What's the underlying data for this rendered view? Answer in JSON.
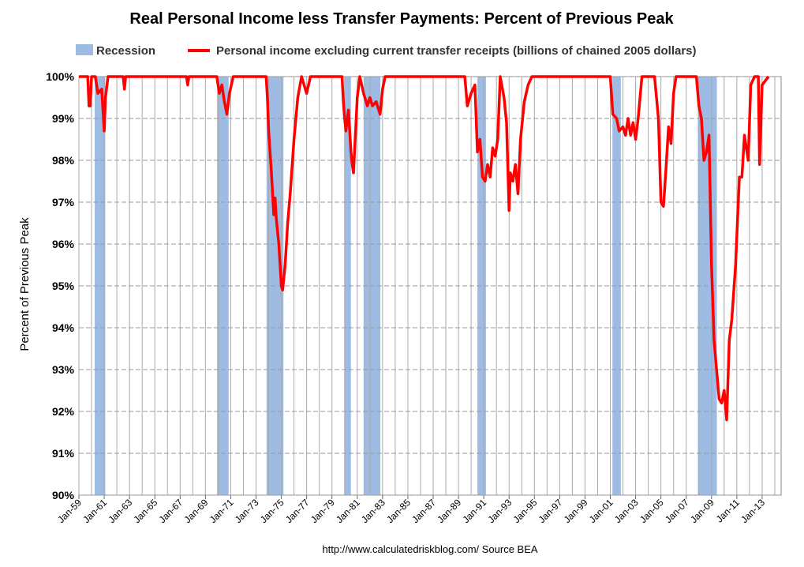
{
  "chart_data": {
    "type": "line",
    "title": "Real Personal Income less Transfer Payments: Percent of Previous Peak",
    "ylabel": "Percent of Previous Peak",
    "note": "http://www.calculatedriskblog.com/     Source BEA",
    "xlim": [
      1959,
      2014.5
    ],
    "ylim": [
      90,
      100
    ],
    "yticks": [
      {
        "value": 90,
        "label": "90%"
      },
      {
        "value": 91,
        "label": "91%"
      },
      {
        "value": 92,
        "label": "92%"
      },
      {
        "value": 93,
        "label": "93%"
      },
      {
        "value": 94,
        "label": "94%"
      },
      {
        "value": 95,
        "label": "95%"
      },
      {
        "value": 96,
        "label": "96%"
      },
      {
        "value": 97,
        "label": "97%"
      },
      {
        "value": 98,
        "label": "98%"
      },
      {
        "value": 99,
        "label": "99%"
      },
      {
        "value": 100,
        "label": "100%"
      }
    ],
    "xticks": [
      {
        "value": 1959,
        "label": "Jan-59"
      },
      {
        "value": 1961,
        "label": "Jan-61"
      },
      {
        "value": 1963,
        "label": "Jan-63"
      },
      {
        "value": 1965,
        "label": "Jan-65"
      },
      {
        "value": 1967,
        "label": "Jan-67"
      },
      {
        "value": 1969,
        "label": "Jan-69"
      },
      {
        "value": 1971,
        "label": "Jan-71"
      },
      {
        "value": 1973,
        "label": "Jan-73"
      },
      {
        "value": 1975,
        "label": "Jan-75"
      },
      {
        "value": 1977,
        "label": "Jan-77"
      },
      {
        "value": 1979,
        "label": "Jan-79"
      },
      {
        "value": 1981,
        "label": "Jan-81"
      },
      {
        "value": 1983,
        "label": "Jan-83"
      },
      {
        "value": 1985,
        "label": "Jan-85"
      },
      {
        "value": 1987,
        "label": "Jan-87"
      },
      {
        "value": 1989,
        "label": "Jan-89"
      },
      {
        "value": 1991,
        "label": "Jan-91"
      },
      {
        "value": 1993,
        "label": "Jan-93"
      },
      {
        "value": 1995,
        "label": "Jan-95"
      },
      {
        "value": 1997,
        "label": "Jan-97"
      },
      {
        "value": 1999,
        "label": "Jan-99"
      },
      {
        "value": 2001,
        "label": "Jan-01"
      },
      {
        "value": 2003,
        "label": "Jan-03"
      },
      {
        "value": 2005,
        "label": "Jan-05"
      },
      {
        "value": 2007,
        "label": "Jan-07"
      },
      {
        "value": 2009,
        "label": "Jan-09"
      },
      {
        "value": 2011,
        "label": "Jan-11"
      },
      {
        "value": 2013,
        "label": "Jan-13"
      }
    ],
    "xminor": [
      1960,
      1962,
      1964,
      1966,
      1968,
      1970,
      1972,
      1974,
      1976,
      1978,
      1980,
      1982,
      1984,
      1986,
      1988,
      1990,
      1992,
      1994,
      1996,
      1998,
      2000,
      2002,
      2004,
      2006,
      2008,
      2010,
      2012,
      2014
    ],
    "grid": true,
    "recession": {
      "name": "Recession",
      "color": "#9dbbe3",
      "periods": [
        [
          1960.25,
          1961.08
        ],
        [
          1969.92,
          1970.83
        ],
        [
          1973.83,
          1975.17
        ],
        [
          1980.0,
          1980.5
        ],
        [
          1981.5,
          1982.83
        ],
        [
          1990.5,
          1991.17
        ],
        [
          2001.17,
          2001.83
        ],
        [
          2007.92,
          2009.42
        ]
      ]
    },
    "series": [
      {
        "name": "Personal income excluding current transfer receipts (billions of chained 2005 dollars)",
        "color": "#ff0000",
        "x": [
          1959.0,
          1959.7,
          1959.8,
          1959.9,
          1960.0,
          1960.3,
          1960.5,
          1960.8,
          1961.0,
          1961.1,
          1961.3,
          1962.5,
          1962.6,
          1962.7,
          1967.5,
          1967.6,
          1967.7,
          1969.9,
          1970.1,
          1970.3,
          1970.5,
          1970.7,
          1970.9,
          1971.2,
          1973.8,
          1973.9,
          1974.0,
          1974.2,
          1974.4,
          1974.5,
          1974.6,
          1974.8,
          1975.0,
          1975.1,
          1975.3,
          1975.5,
          1975.7,
          1976.0,
          1976.3,
          1976.6,
          1977.0,
          1977.3,
          1979.8,
          1979.9,
          1980.0,
          1980.1,
          1980.3,
          1980.5,
          1980.6,
          1980.7,
          1980.8,
          1981.0,
          1981.2,
          1981.5,
          1981.8,
          1982.0,
          1982.2,
          1982.5,
          1982.8,
          1983.0,
          1983.2,
          1989.5,
          1989.7,
          1990.0,
          1990.3,
          1990.5,
          1990.7,
          1990.9,
          1991.1,
          1991.3,
          1991.5,
          1991.7,
          1991.9,
          1992.1,
          1992.3,
          1992.6,
          1992.8,
          1993.0,
          1993.1,
          1993.3,
          1993.5,
          1993.7,
          1993.9,
          1994.2,
          1994.5,
          1994.8,
          2001.0,
          2001.2,
          2001.5,
          2001.7,
          2002.0,
          2002.2,
          2002.4,
          2002.6,
          2002.8,
          2003.0,
          2003.2,
          2003.5,
          2004.5,
          2004.8,
          2005.0,
          2005.2,
          2005.4,
          2005.6,
          2005.8,
          2006.0,
          2006.2,
          2007.8,
          2008.0,
          2008.2,
          2008.4,
          2008.6,
          2008.8,
          2009.0,
          2009.2,
          2009.4,
          2009.6,
          2009.8,
          2010.0,
          2010.2,
          2010.4,
          2010.6,
          2010.9,
          2011.2,
          2011.4,
          2011.6,
          2011.9,
          2012.1,
          2012.4,
          2012.7,
          2012.8,
          2013.0,
          2013.5
        ],
        "values": [
          100,
          100,
          99.3,
          99.3,
          100,
          100,
          99.6,
          99.7,
          98.7,
          99.5,
          100,
          100,
          99.7,
          100,
          100,
          99.8,
          100,
          100,
          99.6,
          99.8,
          99.4,
          99.1,
          99.6,
          100,
          100,
          99.5,
          98.7,
          97.8,
          96.7,
          97.1,
          96.6,
          96.0,
          95.0,
          94.9,
          95.5,
          96.5,
          97.2,
          98.5,
          99.5,
          100,
          99.6,
          100,
          100,
          99.4,
          99.0,
          98.7,
          99.2,
          98.2,
          97.9,
          97.7,
          98.3,
          99.5,
          100,
          99.6,
          99.3,
          99.5,
          99.3,
          99.4,
          99.1,
          99.7,
          100,
          100,
          99.3,
          99.6,
          99.8,
          98.2,
          98.5,
          97.6,
          97.5,
          97.9,
          97.6,
          98.3,
          98.1,
          98.5,
          100,
          99.5,
          98.9,
          96.8,
          97.7,
          97.5,
          97.9,
          97.2,
          98.5,
          99.4,
          99.8,
          100,
          100,
          99.1,
          99.0,
          98.7,
          98.8,
          98.6,
          99.0,
          98.6,
          98.9,
          98.5,
          99.0,
          100,
          100,
          99.0,
          97.0,
          96.9,
          97.8,
          98.8,
          98.4,
          99.6,
          100,
          100,
          99.3,
          99.0,
          98.0,
          98.2,
          98.6,
          95.5,
          93.7,
          93.0,
          92.3,
          92.2,
          92.5,
          91.8,
          93.7,
          94.2,
          95.5,
          97.6,
          97.6,
          98.6,
          98.0,
          99.8,
          100,
          100,
          97.9,
          99.8,
          100
        ]
      }
    ]
  }
}
